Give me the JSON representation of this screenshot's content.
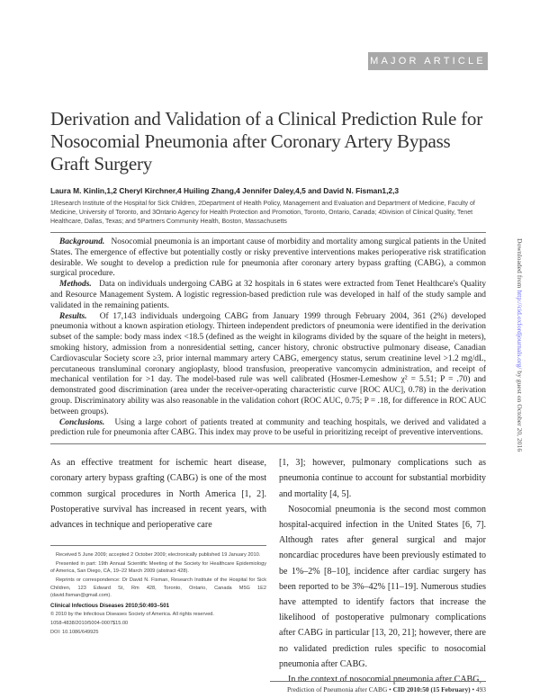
{
  "header": {
    "section_label": "MAJOR ARTICLE"
  },
  "title": "Derivation and Validation of a Clinical Prediction Rule for Nosocomial Pneumonia after Coronary Artery Bypass Graft Surgery",
  "authors": "Laura M. Kinlin,1,2 Cheryl Kirchner,4 Huiling Zhang,4 Jennifer Daley,4,5 and David N. Fisman1,2,3",
  "affiliations": "1Research Institute of the Hospital for Sick Children, 2Department of Health Policy, Management and Evaluation and Department of Medicine, Faculty of Medicine, University of Toronto, and 3Ontario Agency for Health Protection and Promotion, Toronto, Ontario, Canada; 4Division of Clinical Quality, Tenet Healthcare, Dallas, Texas; and 5Partners Community Health, Boston, Massachusetts",
  "abstract": [
    {
      "label": "Background.",
      "text": "Nosocomial pneumonia is an important cause of morbidity and mortality among surgical patients in the United States. The emergence of effective but potentially costly or risky preventive interventions makes perioperative risk stratification desirable. We sought to develop a prediction rule for pneumonia after coronary artery bypass grafting (CABG), a common surgical procedure."
    },
    {
      "label": "Methods.",
      "text": "Data on individuals undergoing CABG at 32 hospitals in 6 states were extracted from Tenet Healthcare's Quality and Resource Management System. A logistic regression-based prediction rule was developed in half of the study sample and validated in the remaining patients."
    },
    {
      "label": "Results.",
      "text": "Of 17,143 individuals undergoing CABG from January 1999 through February 2004, 361 (2%) developed pneumonia without a known aspiration etiology. Thirteen independent predictors of pneumonia were identified in the derivation subset of the sample: body mass index <18.5 (defined as the weight in kilograms divided by the square of the height in meters), smoking history, admission from a nonresidential setting, cancer history, chronic obstructive pulmonary disease, Canadian Cardiovascular Society score ≥3, prior internal mammary artery CABG, emergency status, serum creatinine level >1.2 mg/dL, percutaneous transluminal coronary angioplasty, blood transfusion, preoperative vancomycin administration, and receipt of mechanical ventilation for >1 day. The model-based rule was well calibrated (Hosmer-Lemeshow χ² = 5.51; P = .70) and demonstrated good discrimination (area under the receiver-operating characteristic curve [ROC AUC], 0.78) in the derivation group. Discriminatory ability was also reasonable in the validation cohort (ROC AUC, 0.75; P = .18, for difference in ROC AUC between groups)."
    },
    {
      "label": "Conclusions.",
      "text": "Using a large cohort of patients treated at community and teaching hospitals, we derived and validated a prediction rule for pneumonia after CABG. This index may prove to be useful in prioritizing receipt of preventive interventions."
    }
  ],
  "body_left": "As an effective treatment for ischemic heart disease, coronary artery bypass grafting (CABG) is one of the most common surgical procedures in North America [1, 2]. Postoperative survival has increased in recent years, with advances in technique and perioperative care",
  "body_right": [
    "[1, 3]; however, pulmonary complications such as pneumonia continue to account for substantial morbidity and mortality [4, 5].",
    "Nosocomial pneumonia is the second most common hospital-acquired infection in the United States [6, 7]. Although rates after general surgical and major noncardiac procedures have been previously estimated to be 1%–2% [8–10], incidence after cardiac surgery has been reported to be 3%–42% [11–19]. Numerous studies have attempted to identify factors that increase the likelihood of postoperative pulmonary complications after CABG in particular [13, 20, 21]; however, there are no validated prediction rules specific to nosocomial pneumonia after CABG.",
    "In the context of nosocomial pneumonia after CABG,"
  ],
  "footnotes": {
    "received": "Received 5 June 2009; accepted 2 October 2009; electronically published 19 January 2010.",
    "presented": "Presented in part: 19th Annual Scientific Meeting of the Society for Healthcare Epidemiology of America, San Diego, CA, 19–22 March 2009 (abstract 428).",
    "reprints": "Reprints or correspondence: Dr David N. Fisman, Research Institute of the Hospital for Sick Children, 123 Edward St, Rm 428, Toronto, Ontario, Canada M5G 1E2 (david.fisman@gmail.com).",
    "journal": "Clinical Infectious Diseases   2010;50:493–501",
    "copyright": "© 2010 by the Infectious Diseases Society of America. All rights reserved.",
    "issn": "1058-4838/2010/5004-0007$15.00",
    "doi": "DOI: 10.1086/649925"
  },
  "sidebar": {
    "prefix": "Downloaded from ",
    "link": "http://cid.oxfordjournals.org/",
    "suffix": " by guest on October 20, 2016"
  },
  "footer": {
    "running_title": "Prediction of Pneumonia after CABG",
    "sep": " • ",
    "citation": "CID 2010:50 (15 February)",
    "page": "493"
  },
  "colors": {
    "banner": "#a8a8a8",
    "link": "#6a6aff"
  }
}
